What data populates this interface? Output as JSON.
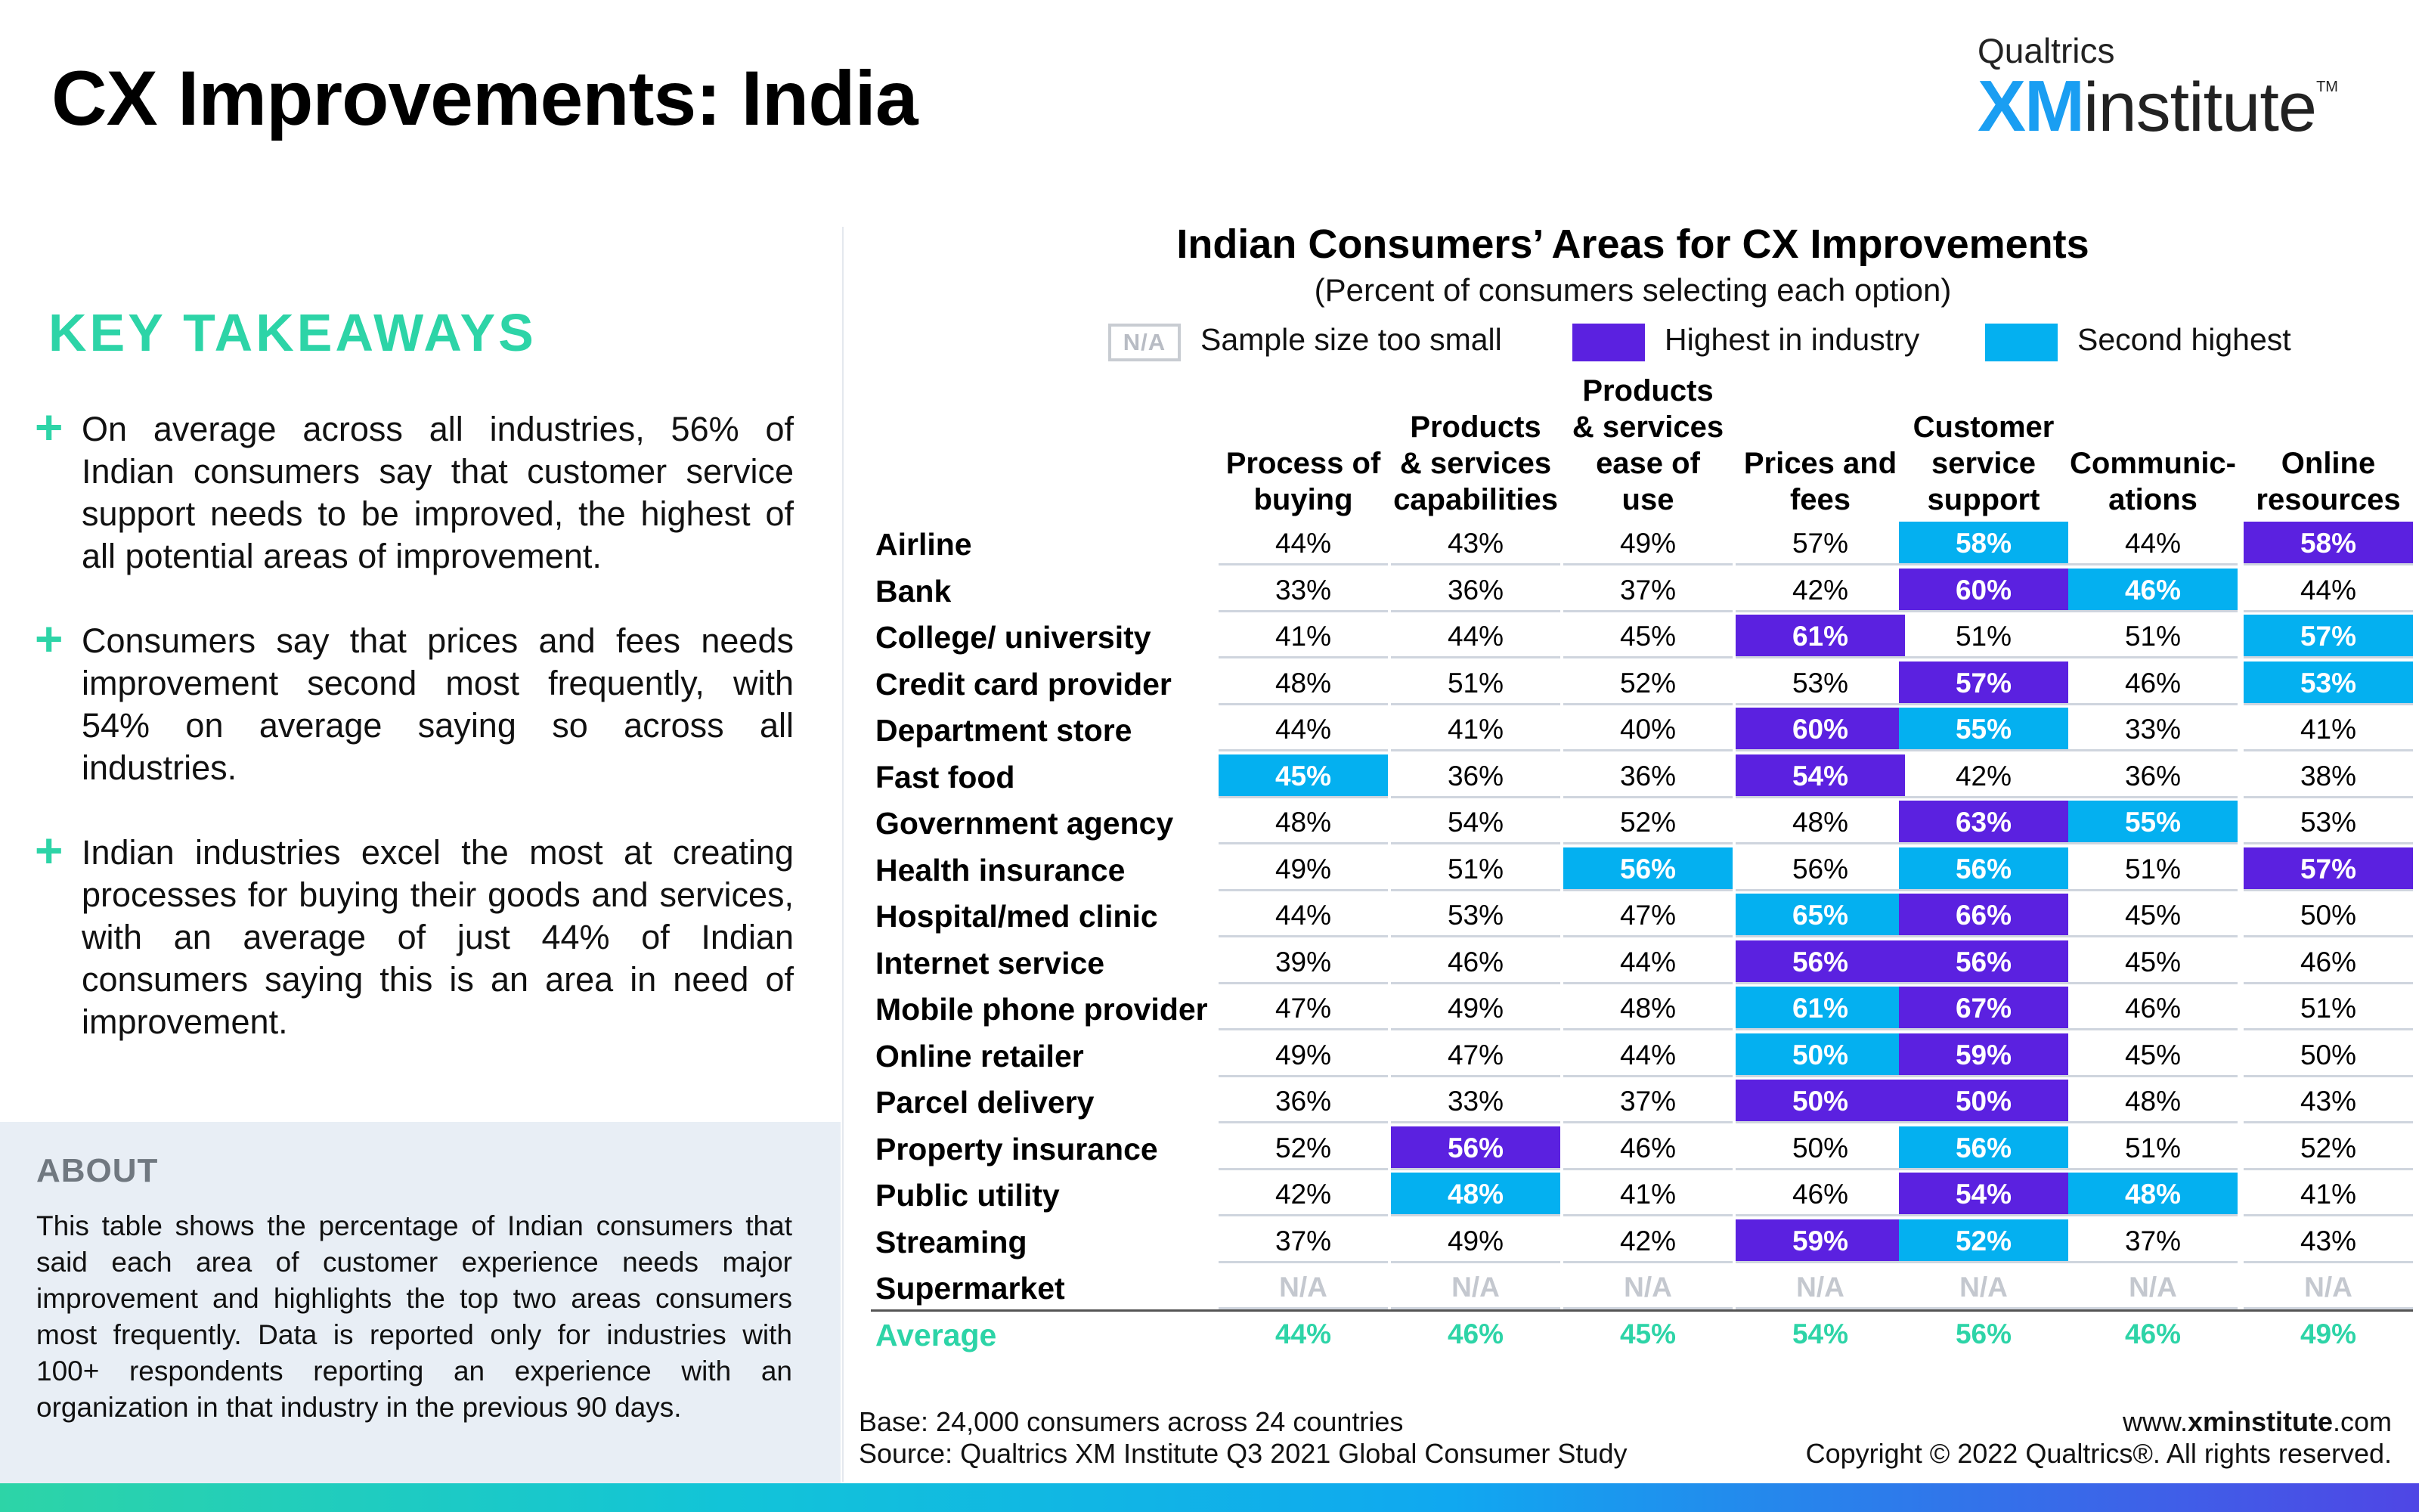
{
  "page": {
    "title": "CX Improvements: India",
    "logo": {
      "top": "Qualtrics",
      "xm": "XM",
      "institute": "institute",
      "tm": "TM"
    }
  },
  "takeaways": {
    "title": "KEY TAKEAWAYS",
    "icon": "plus-icon",
    "items": [
      "On average across all industries, 56% of Indian consumers say that customer service support needs to be improved, the highest of all potential areas of improvement.",
      "Consumers say that prices and fees needs improvement second most frequently, with 54% on average saying so across all industries.",
      "Indian industries excel the most at creating processes for buying their goods and services, with an average of just 44% of Indian consumers saying this is an area in need of improvement."
    ]
  },
  "about": {
    "title": "ABOUT",
    "text": "This table shows the percentage of Indian consumers that said each area of customer experience needs major improvement and highlights the top two areas consumers most frequently. Data is reported only for industries with 100+ respondents reporting an experience with an organization in that industry in the previous 90 days."
  },
  "colors": {
    "highest": "#5b21e0",
    "second": "#04b0f0",
    "average": "#2dd4a7",
    "accent": "#2dd4a7"
  },
  "chart_data": {
    "type": "table",
    "title": "Indian Consumers’ Areas for CX Improvements",
    "subtitle": "(Percent of consumers selecting each option)",
    "legend": [
      {
        "key": "na",
        "box": "N/A",
        "label": "Sample size too small"
      },
      {
        "key": "highest",
        "box": "",
        "label": "Highest in industry"
      },
      {
        "key": "second",
        "box": "",
        "label": "Second highest"
      }
    ],
    "columns": [
      "Process of\nbuying",
      "Products\n& services\ncapabilities",
      "Products\n& services\nease of\nuse",
      "Prices and\nfees",
      "Customer\nservice\nsupport",
      "Communic-\nations",
      "Online\nresources"
    ],
    "rows": [
      {
        "label": "Airline",
        "values": [
          "44%",
          "43%",
          "49%",
          "57%",
          "58%",
          "44%",
          "58%"
        ],
        "highlight": [
          "",
          "",
          "",
          "",
          "second",
          "",
          "highest"
        ]
      },
      {
        "label": "Bank",
        "values": [
          "33%",
          "36%",
          "37%",
          "42%",
          "60%",
          "46%",
          "44%"
        ],
        "highlight": [
          "",
          "",
          "",
          "",
          "highest",
          "second",
          ""
        ]
      },
      {
        "label": "College/ university",
        "values": [
          "41%",
          "44%",
          "45%",
          "61%",
          "51%",
          "51%",
          "57%"
        ],
        "highlight": [
          "",
          "",
          "",
          "highest",
          "",
          "",
          "second"
        ]
      },
      {
        "label": "Credit card provider",
        "values": [
          "48%",
          "51%",
          "52%",
          "53%",
          "57%",
          "46%",
          "53%"
        ],
        "highlight": [
          "",
          "",
          "",
          "",
          "highest",
          "",
          "second"
        ]
      },
      {
        "label": "Department store",
        "values": [
          "44%",
          "41%",
          "40%",
          "60%",
          "55%",
          "33%",
          "41%"
        ],
        "highlight": [
          "",
          "",
          "",
          "highest",
          "second",
          "",
          ""
        ]
      },
      {
        "label": "Fast food",
        "values": [
          "45%",
          "36%",
          "36%",
          "54%",
          "42%",
          "36%",
          "38%"
        ],
        "highlight": [
          "second",
          "",
          "",
          "highest",
          "",
          "",
          ""
        ]
      },
      {
        "label": "Government agency",
        "values": [
          "48%",
          "54%",
          "52%",
          "48%",
          "63%",
          "55%",
          "53%"
        ],
        "highlight": [
          "",
          "",
          "",
          "",
          "highest",
          "second",
          ""
        ]
      },
      {
        "label": "Health insurance",
        "values": [
          "49%",
          "51%",
          "56%",
          "56%",
          "56%",
          "51%",
          "57%"
        ],
        "highlight": [
          "",
          "",
          "second",
          "",
          "second",
          "",
          "highest"
        ]
      },
      {
        "label": "Hospital/med clinic",
        "values": [
          "44%",
          "53%",
          "47%",
          "65%",
          "66%",
          "45%",
          "50%"
        ],
        "highlight": [
          "",
          "",
          "",
          "second",
          "highest",
          "",
          ""
        ]
      },
      {
        "label": "Internet service",
        "values": [
          "39%",
          "46%",
          "44%",
          "56%",
          "56%",
          "45%",
          "46%"
        ],
        "highlight": [
          "",
          "",
          "",
          "highest",
          "highest",
          "",
          ""
        ]
      },
      {
        "label": "Mobile phone provider",
        "values": [
          "47%",
          "49%",
          "48%",
          "61%",
          "67%",
          "46%",
          "51%"
        ],
        "highlight": [
          "",
          "",
          "",
          "second",
          "highest",
          "",
          ""
        ]
      },
      {
        "label": "Online retailer",
        "values": [
          "49%",
          "47%",
          "44%",
          "50%",
          "59%",
          "45%",
          "50%"
        ],
        "highlight": [
          "",
          "",
          "",
          "second",
          "highest",
          "",
          ""
        ]
      },
      {
        "label": "Parcel delivery",
        "values": [
          "36%",
          "33%",
          "37%",
          "50%",
          "50%",
          "48%",
          "43%"
        ],
        "highlight": [
          "",
          "",
          "",
          "highest",
          "highest",
          "",
          ""
        ]
      },
      {
        "label": "Property insurance",
        "values": [
          "52%",
          "56%",
          "46%",
          "50%",
          "56%",
          "51%",
          "52%"
        ],
        "highlight": [
          "",
          "highest",
          "",
          "",
          "second",
          "",
          ""
        ]
      },
      {
        "label": "Public utility",
        "values": [
          "42%",
          "48%",
          "41%",
          "46%",
          "54%",
          "48%",
          "41%"
        ],
        "highlight": [
          "",
          "second",
          "",
          "",
          "highest",
          "second",
          ""
        ]
      },
      {
        "label": "Streaming",
        "values": [
          "37%",
          "49%",
          "42%",
          "59%",
          "52%",
          "37%",
          "43%"
        ],
        "highlight": [
          "",
          "",
          "",
          "highest",
          "second",
          "",
          ""
        ]
      },
      {
        "label": "Supermarket",
        "values": [
          "N/A",
          "N/A",
          "N/A",
          "N/A",
          "N/A",
          "N/A",
          "N/A"
        ],
        "highlight": [
          "na",
          "na",
          "na",
          "na",
          "na",
          "na",
          "na"
        ]
      }
    ],
    "average": {
      "label": "Average",
      "values": [
        "44%",
        "46%",
        "45%",
        "54%",
        "56%",
        "46%",
        "49%"
      ]
    }
  },
  "footer": {
    "base": "Base: 24,000 consumers across 24 countries",
    "source": "Source: Qualtrics XM Institute Q3 2021 Global Consumer Study",
    "web_prefix": "www.",
    "web_domain": "xminstitute",
    "web_suffix": ".com",
    "copyright": "Copyright © 2022 Qualtrics®. All rights reserved."
  }
}
